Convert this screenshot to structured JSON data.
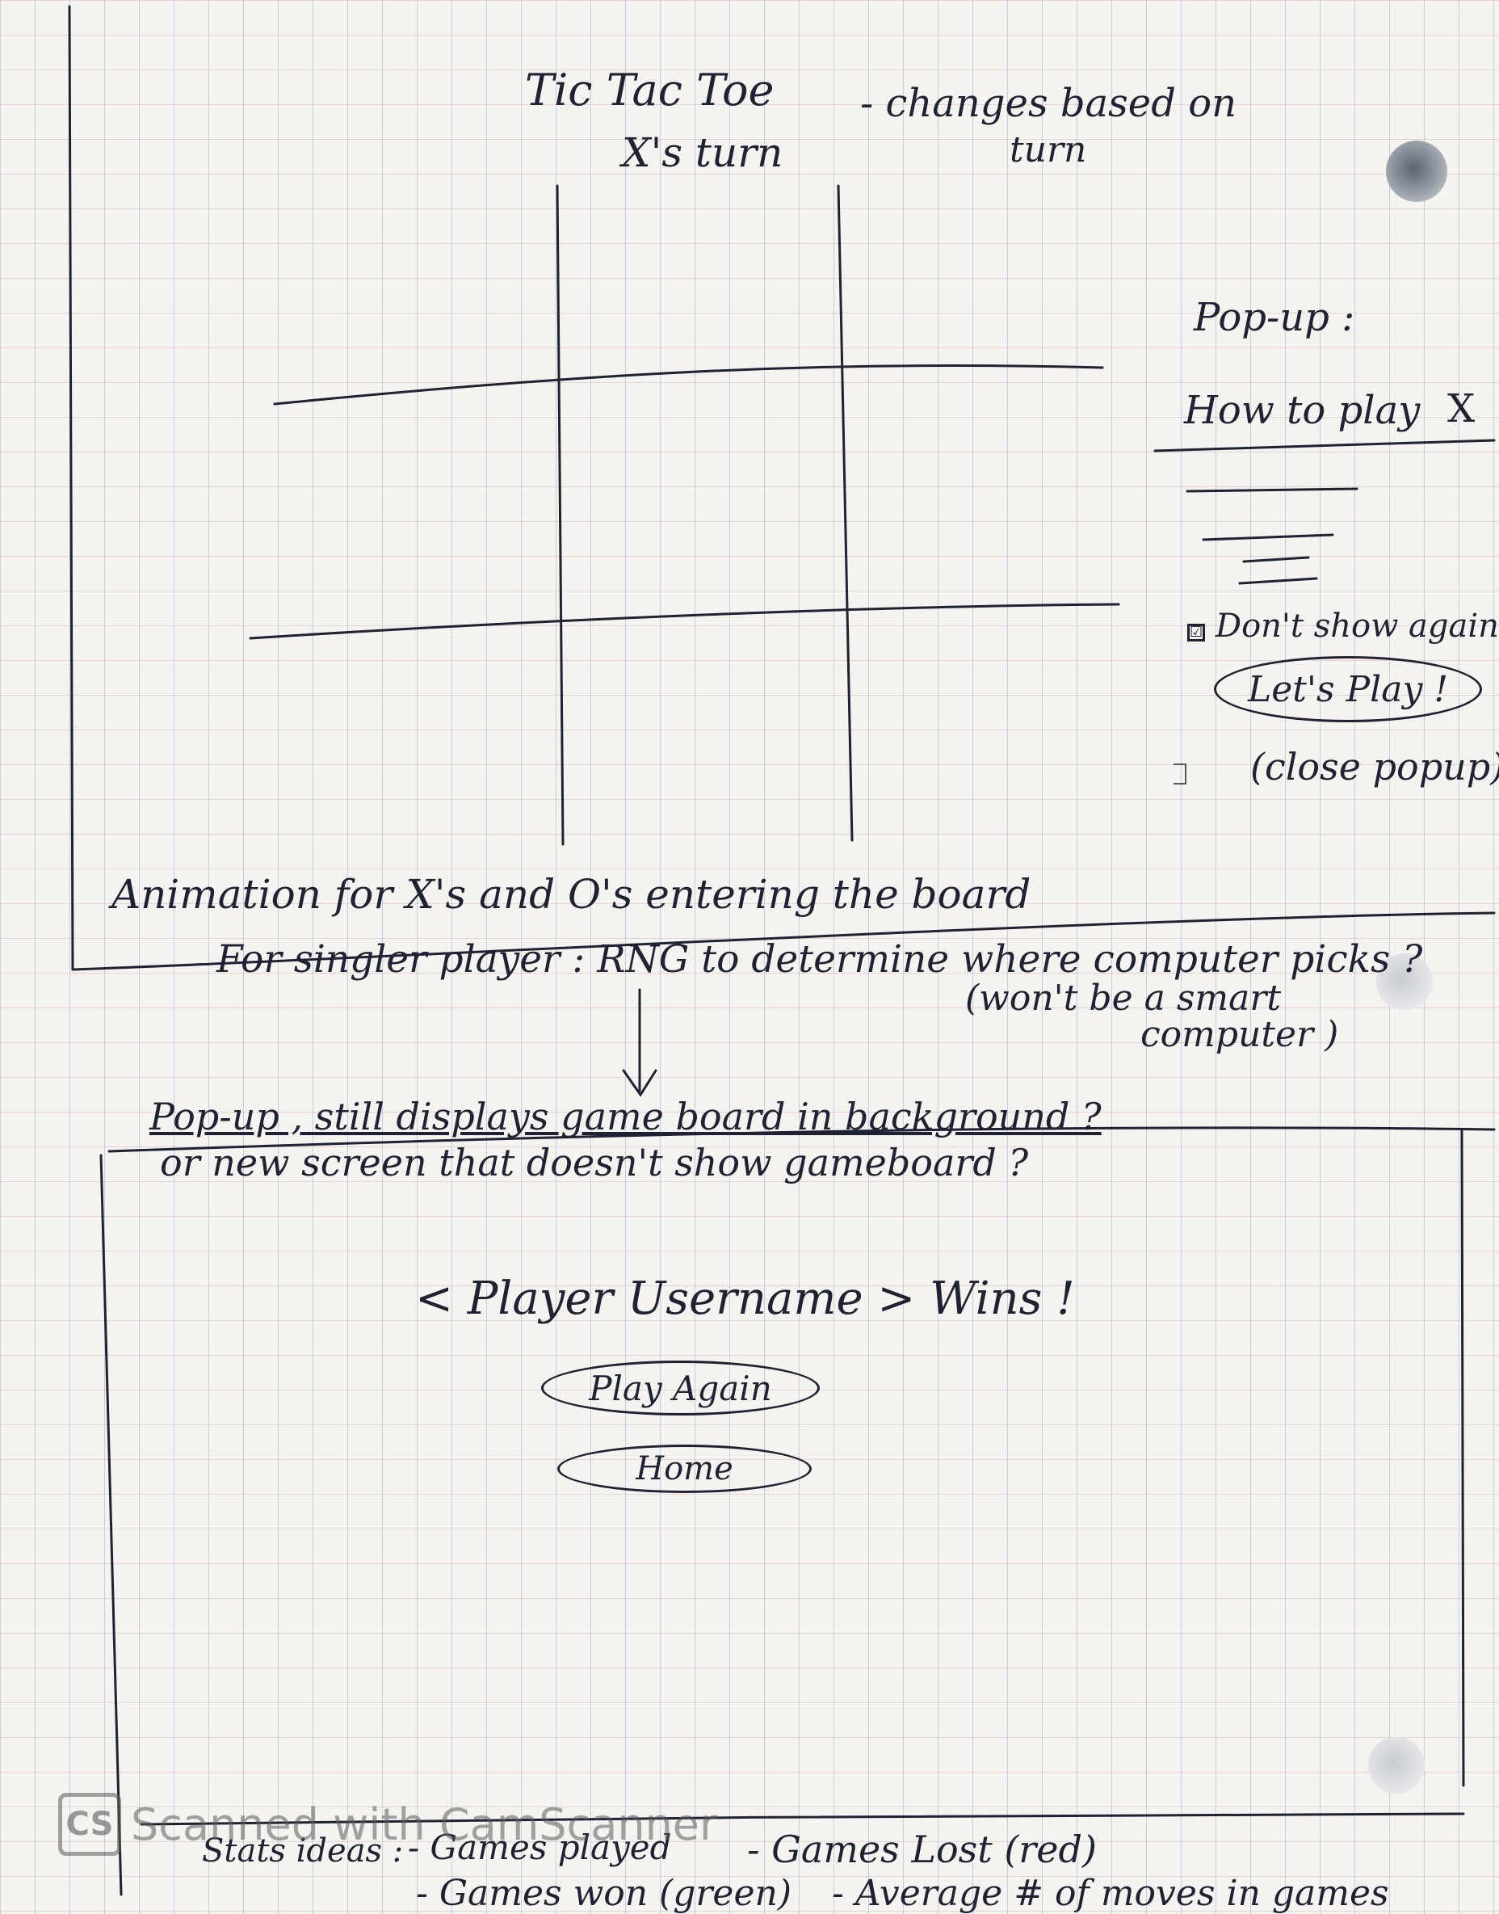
{
  "sketch1": {
    "title": "Tic Tac Toe",
    "turn_label": "X's turn",
    "turn_note": "- changes based on",
    "turn_note_2": "turn",
    "popup_heading": "Pop-up :",
    "popup_title": "How to play",
    "popup_close": "X",
    "popup_checkbox_mark": "☑",
    "popup_checkbox_label": "Don't show again",
    "popup_button": "Let's Play !",
    "popup_button_note": "(close popup)"
  },
  "notes": {
    "animation": "Animation for X's and O's entering the board",
    "single_player": "For singler player : RNG to determine where computer picks ?",
    "single_player_note_1": "(won't be a smart",
    "single_player_note_2": "computer )",
    "popup_question": "Pop-up , still displays game board in background ?",
    "screen_question": "or new screen that doesn't show gameboard ?"
  },
  "sketch2": {
    "win_message": "< Player Username > Wins !",
    "play_again": "Play Again",
    "home": "Home"
  },
  "stats": {
    "label": "Stats ideas :",
    "items": [
      "- Games played",
      "- Games Lost (red)",
      "- Games won (green)",
      "- Average # of moves in games"
    ]
  },
  "watermark": {
    "logo": "CS",
    "text": "Scanned with CamScanner"
  }
}
